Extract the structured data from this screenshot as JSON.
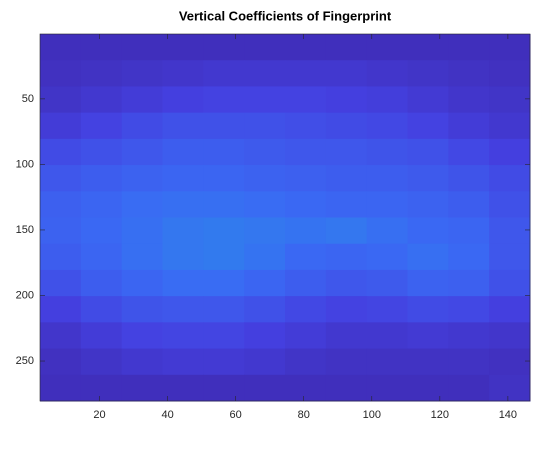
{
  "chart_data": {
    "type": "heatmap",
    "title": "Vertical Coefficients of Fingerprint",
    "xlim": [
      2.5,
      146.5
    ],
    "ylim": [
      0.5,
      280.5
    ],
    "xticks": [
      20,
      40,
      60,
      80,
      100,
      120,
      140
    ],
    "yticks": [
      50,
      100,
      150,
      200,
      250
    ],
    "y_reversed": true,
    "colormap": [
      "#3e26a8",
      "#4440e0",
      "#3a6af4",
      "#1f9fe0",
      "#2cc6a8",
      "#a8c836",
      "#f9d530",
      "#f9fb0e"
    ],
    "clim": [
      0,
      1
    ],
    "matrix": [
      [
        0.05,
        0.05,
        0.05,
        0.05,
        0.05,
        0.05,
        0.05,
        0.05,
        0.05,
        0.05,
        0.05,
        0.05
      ],
      [
        0.06,
        0.07,
        0.08,
        0.09,
        0.1,
        0.1,
        0.1,
        0.1,
        0.09,
        0.08,
        0.07,
        0.06
      ],
      [
        0.08,
        0.1,
        0.12,
        0.14,
        0.15,
        0.15,
        0.15,
        0.14,
        0.13,
        0.11,
        0.09,
        0.08
      ],
      [
        0.12,
        0.15,
        0.18,
        0.2,
        0.2,
        0.2,
        0.19,
        0.18,
        0.17,
        0.15,
        0.12,
        0.1
      ],
      [
        0.18,
        0.2,
        0.22,
        0.24,
        0.24,
        0.23,
        0.22,
        0.22,
        0.21,
        0.2,
        0.17,
        0.14
      ],
      [
        0.22,
        0.24,
        0.26,
        0.27,
        0.27,
        0.26,
        0.25,
        0.24,
        0.24,
        0.23,
        0.21,
        0.18
      ],
      [
        0.25,
        0.27,
        0.29,
        0.3,
        0.3,
        0.29,
        0.28,
        0.27,
        0.27,
        0.26,
        0.24,
        0.2
      ],
      [
        0.26,
        0.28,
        0.3,
        0.32,
        0.33,
        0.32,
        0.31,
        0.32,
        0.3,
        0.28,
        0.27,
        0.22
      ],
      [
        0.24,
        0.27,
        0.3,
        0.32,
        0.33,
        0.31,
        0.28,
        0.27,
        0.28,
        0.3,
        0.28,
        0.22
      ],
      [
        0.2,
        0.24,
        0.27,
        0.29,
        0.29,
        0.27,
        0.24,
        0.22,
        0.23,
        0.26,
        0.25,
        0.2
      ],
      [
        0.14,
        0.18,
        0.21,
        0.22,
        0.22,
        0.2,
        0.17,
        0.15,
        0.16,
        0.18,
        0.17,
        0.14
      ],
      [
        0.09,
        0.12,
        0.15,
        0.16,
        0.16,
        0.14,
        0.12,
        0.1,
        0.1,
        0.11,
        0.1,
        0.09
      ],
      [
        0.06,
        0.08,
        0.1,
        0.11,
        0.11,
        0.1,
        0.08,
        0.07,
        0.07,
        0.07,
        0.07,
        0.06
      ],
      [
        0.05,
        0.05,
        0.05,
        0.05,
        0.05,
        0.05,
        0.05,
        0.05,
        0.05,
        0.05,
        0.05,
        0.07
      ]
    ]
  }
}
